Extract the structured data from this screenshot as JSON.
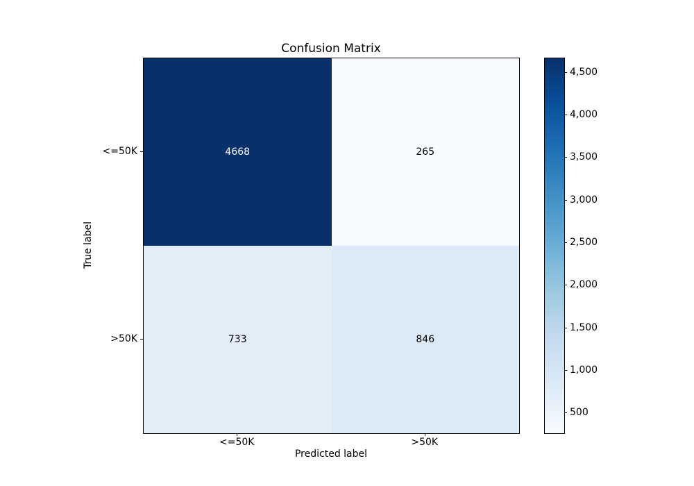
{
  "chart_data": {
    "type": "heatmap",
    "title": "Confusion Matrix",
    "xlabel": "Predicted label",
    "ylabel": "True label",
    "x_tick_labels": [
      "<=50K",
      ">50K"
    ],
    "y_tick_labels": [
      "<=50K",
      ">50K"
    ],
    "matrix": [
      [
        4668,
        265
      ],
      [
        733,
        846
      ]
    ],
    "cell_colors": [
      [
        "#08306b",
        "#f7fbff"
      ],
      [
        "#e2edf8",
        "#ddeaf7"
      ]
    ],
    "cell_text_colors": [
      [
        "#ffffff",
        "#000000"
      ],
      [
        "#000000",
        "#000000"
      ]
    ],
    "colormap": "Blues",
    "colormap_stops": [
      "#f7fbff",
      "#deebf7",
      "#c6dbef",
      "#9ecae1",
      "#6baed6",
      "#4292c6",
      "#2171b5",
      "#08519c",
      "#08306b"
    ],
    "vmin": 265,
    "vmax": 4668,
    "colorbar_ticks": [
      {
        "value": 4500,
        "label": "4,500"
      },
      {
        "value": 4000,
        "label": "4,000"
      },
      {
        "value": 3500,
        "label": "3,500"
      },
      {
        "value": 3000,
        "label": "3,000"
      },
      {
        "value": 2500,
        "label": "2,500"
      },
      {
        "value": 2000,
        "label": "2,000"
      },
      {
        "value": 1500,
        "label": "1,500"
      },
      {
        "value": 1000,
        "label": "1,000"
      },
      {
        "value": 500,
        "label": "500"
      }
    ],
    "legend_position": "right-colorbar",
    "grid": false,
    "background_color": "#ffffff"
  }
}
